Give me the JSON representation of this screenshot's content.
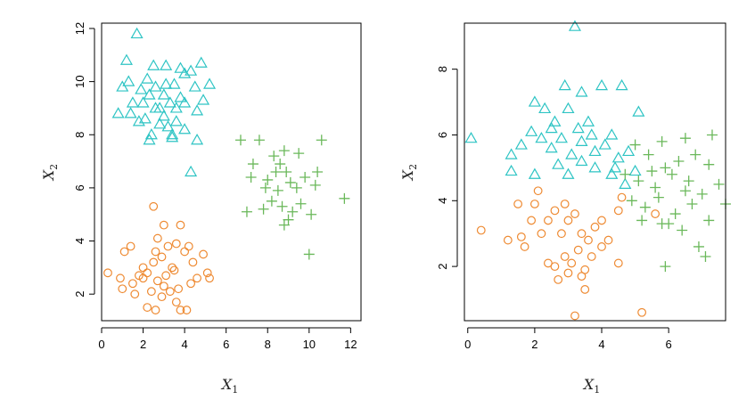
{
  "colors": {
    "triangle": "#2ec4c4",
    "cross": "#6ab85a",
    "circle": "#ee8a32"
  },
  "chart_data": [
    {
      "type": "scatter",
      "xlabel": "X",
      "xlabel_sub": "1",
      "ylabel": "X",
      "ylabel_sub": "2",
      "xlim": [
        0,
        12.5
      ],
      "ylim": [
        1,
        12.2
      ],
      "xticks": [
        "0",
        "2",
        "4",
        "6",
        "8",
        "10",
        "12"
      ],
      "yticks": [
        "2",
        "4",
        "6",
        "8",
        "10",
        "12"
      ],
      "series": [
        {
          "marker": "triangle",
          "points": [
            [
              1.7,
              11.8
            ],
            [
              1.2,
              10.8
            ],
            [
              2.5,
              10.6
            ],
            [
              3.1,
              10.6
            ],
            [
              3.8,
              10.5
            ],
            [
              4.0,
              10.3
            ],
            [
              4.3,
              10.4
            ],
            [
              4.8,
              10.7
            ],
            [
              5.2,
              9.9
            ],
            [
              2.2,
              10.1
            ],
            [
              1.0,
              9.8
            ],
            [
              0.8,
              8.8
            ],
            [
              1.3,
              10.0
            ],
            [
              1.5,
              9.2
            ],
            [
              1.9,
              9.7
            ],
            [
              2.0,
              9.2
            ],
            [
              2.3,
              9.5
            ],
            [
              2.6,
              9.8
            ],
            [
              2.8,
              9.0
            ],
            [
              3.0,
              9.5
            ],
            [
              3.3,
              9.2
            ],
            [
              3.5,
              9.9
            ],
            [
              3.6,
              9.0
            ],
            [
              4.0,
              9.2
            ],
            [
              4.5,
              9.8
            ],
            [
              4.6,
              8.9
            ],
            [
              4.9,
              9.3
            ],
            [
              1.4,
              8.8
            ],
            [
              1.8,
              8.5
            ],
            [
              2.1,
              8.6
            ],
            [
              2.4,
              8.0
            ],
            [
              2.8,
              8.4
            ],
            [
              3.0,
              8.7
            ],
            [
              3.2,
              8.3
            ],
            [
              3.4,
              8.0
            ],
            [
              3.6,
              8.5
            ],
            [
              2.3,
              7.8
            ],
            [
              3.4,
              7.9
            ],
            [
              4.0,
              8.2
            ],
            [
              4.6,
              7.8
            ],
            [
              4.3,
              6.6
            ],
            [
              2.6,
              9.0
            ],
            [
              3.1,
              9.9
            ],
            [
              3.8,
              9.4
            ]
          ]
        },
        {
          "marker": "cross",
          "points": [
            [
              6.7,
              7.8
            ],
            [
              7.6,
              7.8
            ],
            [
              8.3,
              7.2
            ],
            [
              8.8,
              7.4
            ],
            [
              9.5,
              7.3
            ],
            [
              10.6,
              7.8
            ],
            [
              7.2,
              6.4
            ],
            [
              7.9,
              6.0
            ],
            [
              8.4,
              6.6
            ],
            [
              8.6,
              6.9
            ],
            [
              8.9,
              6.6
            ],
            [
              9.1,
              6.2
            ],
            [
              9.8,
              6.4
            ],
            [
              10.3,
              6.1
            ],
            [
              11.7,
              5.6
            ],
            [
              7.0,
              5.1
            ],
            [
              7.8,
              5.2
            ],
            [
              8.2,
              5.5
            ],
            [
              8.5,
              5.9
            ],
            [
              8.7,
              5.3
            ],
            [
              9.2,
              5.1
            ],
            [
              9.6,
              5.4
            ],
            [
              10.1,
              5.0
            ],
            [
              9.0,
              4.8
            ],
            [
              10.0,
              3.5
            ],
            [
              7.3,
              6.9
            ],
            [
              8.0,
              6.3
            ],
            [
              9.4,
              6.0
            ],
            [
              8.8,
              4.6
            ],
            [
              10.4,
              6.6
            ]
          ]
        },
        {
          "marker": "circle",
          "points": [
            [
              2.5,
              5.3
            ],
            [
              0.3,
              2.8
            ],
            [
              0.9,
              2.6
            ],
            [
              1.1,
              3.6
            ],
            [
              1.4,
              3.8
            ],
            [
              1.0,
              2.2
            ],
            [
              1.5,
              2.4
            ],
            [
              1.8,
              2.7
            ],
            [
              2.0,
              3.0
            ],
            [
              2.2,
              2.8
            ],
            [
              2.5,
              3.2
            ],
            [
              2.6,
              3.6
            ],
            [
              2.7,
              4.1
            ],
            [
              2.9,
              3.4
            ],
            [
              3.0,
              4.6
            ],
            [
              3.2,
              3.8
            ],
            [
              3.4,
              3.0
            ],
            [
              3.6,
              3.9
            ],
            [
              3.8,
              4.6
            ],
            [
              4.0,
              3.6
            ],
            [
              4.2,
              3.8
            ],
            [
              4.4,
              3.2
            ],
            [
              4.6,
              2.6
            ],
            [
              4.9,
              3.5
            ],
            [
              5.1,
              2.8
            ],
            [
              2.4,
              2.1
            ],
            [
              2.7,
              2.5
            ],
            [
              3.0,
              2.3
            ],
            [
              3.3,
              2.1
            ],
            [
              3.6,
              1.7
            ],
            [
              3.8,
              1.4
            ],
            [
              4.1,
              1.4
            ],
            [
              2.2,
              1.5
            ],
            [
              2.6,
              1.4
            ],
            [
              2.0,
              2.6
            ],
            [
              3.1,
              2.7
            ],
            [
              3.5,
              2.9
            ],
            [
              4.3,
              2.4
            ],
            [
              5.2,
              2.6
            ],
            [
              1.6,
              2.0
            ],
            [
              2.9,
              1.9
            ],
            [
              3.7,
              2.2
            ]
          ]
        }
      ]
    },
    {
      "type": "scatter",
      "xlabel": "X",
      "xlabel_sub": "1",
      "ylabel": "X",
      "ylabel_sub": "2",
      "xlim": [
        -0.1,
        7.7
      ],
      "ylim": [
        0.35,
        9.4
      ],
      "xticks": [
        "0",
        "2",
        "4",
        "6"
      ],
      "yticks": [
        "2",
        "4",
        "6",
        "8"
      ],
      "series": [
        {
          "marker": "triangle",
          "points": [
            [
              3.2,
              9.3
            ],
            [
              2.9,
              7.5
            ],
            [
              3.4,
              7.3
            ],
            [
              4.0,
              7.5
            ],
            [
              4.6,
              7.5
            ],
            [
              2.0,
              7.0
            ],
            [
              2.3,
              6.8
            ],
            [
              2.6,
              6.4
            ],
            [
              3.0,
              6.8
            ],
            [
              3.3,
              6.2
            ],
            [
              3.6,
              6.4
            ],
            [
              4.3,
              6.0
            ],
            [
              5.1,
              6.7
            ],
            [
              0.1,
              5.9
            ],
            [
              1.3,
              5.4
            ],
            [
              1.6,
              5.7
            ],
            [
              1.9,
              6.1
            ],
            [
              2.2,
              5.9
            ],
            [
              2.5,
              5.6
            ],
            [
              2.8,
              5.9
            ],
            [
              3.1,
              5.4
            ],
            [
              3.4,
              5.8
            ],
            [
              3.8,
              5.5
            ],
            [
              4.1,
              5.7
            ],
            [
              4.5,
              5.3
            ],
            [
              4.8,
              5.5
            ],
            [
              1.3,
              4.9
            ],
            [
              2.0,
              4.8
            ],
            [
              2.7,
              5.1
            ],
            [
              3.0,
              4.8
            ],
            [
              3.4,
              5.2
            ],
            [
              3.8,
              5.0
            ],
            [
              4.3,
              4.8
            ],
            [
              4.7,
              4.5
            ],
            [
              5.0,
              4.9
            ],
            [
              2.5,
              6.2
            ],
            [
              3.7,
              6.0
            ],
            [
              4.4,
              5.0
            ]
          ]
        },
        {
          "marker": "cross",
          "points": [
            [
              5.0,
              5.7
            ],
            [
              5.8,
              5.8
            ],
            [
              6.5,
              5.9
            ],
            [
              7.3,
              6.0
            ],
            [
              5.4,
              5.4
            ],
            [
              5.9,
              5.0
            ],
            [
              6.3,
              5.2
            ],
            [
              6.8,
              5.4
            ],
            [
              7.2,
              5.1
            ],
            [
              4.7,
              4.8
            ],
            [
              5.1,
              4.6
            ],
            [
              5.6,
              4.4
            ],
            [
              6.1,
              4.8
            ],
            [
              6.6,
              4.6
            ],
            [
              7.0,
              4.2
            ],
            [
              7.5,
              4.5
            ],
            [
              4.9,
              4.0
            ],
            [
              5.3,
              3.8
            ],
            [
              5.7,
              4.1
            ],
            [
              6.2,
              3.6
            ],
            [
              6.7,
              3.9
            ],
            [
              7.2,
              3.4
            ],
            [
              7.7,
              3.9
            ],
            [
              5.2,
              3.4
            ],
            [
              5.8,
              3.3
            ],
            [
              6.4,
              3.1
            ],
            [
              6.9,
              2.6
            ],
            [
              7.1,
              2.3
            ],
            [
              5.9,
              2.0
            ],
            [
              6.0,
              3.3
            ],
            [
              6.5,
              4.3
            ],
            [
              5.5,
              4.9
            ]
          ]
        },
        {
          "marker": "circle",
          "points": [
            [
              2.1,
              4.3
            ],
            [
              0.4,
              3.1
            ],
            [
              1.2,
              2.8
            ],
            [
              1.5,
              3.9
            ],
            [
              1.7,
              2.6
            ],
            [
              1.9,
              3.4
            ],
            [
              2.0,
              3.9
            ],
            [
              2.2,
              3.0
            ],
            [
              2.4,
              3.4
            ],
            [
              2.6,
              3.7
            ],
            [
              2.8,
              3.0
            ],
            [
              2.9,
              3.9
            ],
            [
              3.0,
              3.4
            ],
            [
              3.2,
              3.6
            ],
            [
              3.4,
              3.0
            ],
            [
              3.6,
              2.8
            ],
            [
              3.8,
              3.2
            ],
            [
              4.0,
              3.4
            ],
            [
              4.2,
              2.8
            ],
            [
              4.5,
              3.7
            ],
            [
              4.6,
              4.1
            ],
            [
              2.4,
              2.1
            ],
            [
              2.6,
              2.0
            ],
            [
              2.9,
              2.3
            ],
            [
              3.1,
              2.1
            ],
            [
              3.3,
              2.5
            ],
            [
              3.5,
              1.9
            ],
            [
              3.7,
              2.3
            ],
            [
              4.0,
              2.6
            ],
            [
              4.5,
              2.1
            ],
            [
              2.7,
              1.6
            ],
            [
              3.0,
              1.8
            ],
            [
              3.4,
              1.7
            ],
            [
              3.5,
              1.3
            ],
            [
              3.2,
              0.5
            ],
            [
              5.2,
              0.6
            ],
            [
              5.6,
              3.6
            ],
            [
              1.6,
              2.9
            ]
          ]
        }
      ]
    }
  ]
}
